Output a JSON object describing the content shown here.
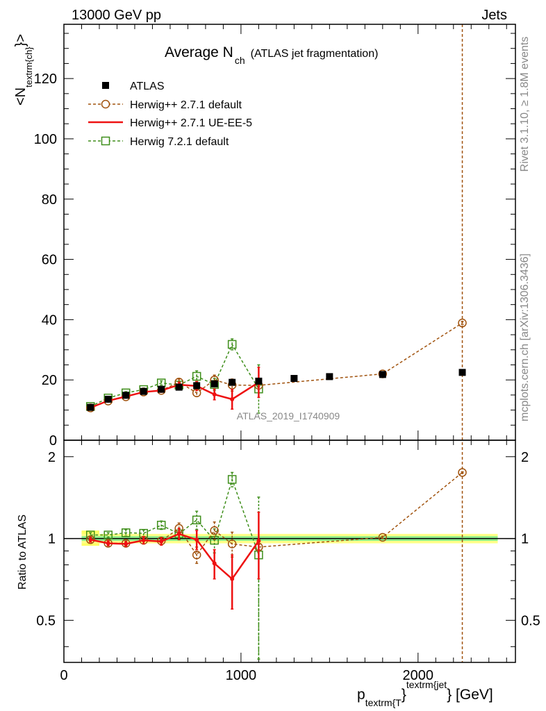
{
  "header": {
    "left": "13000 GeV pp",
    "right": "Jets"
  },
  "side_labels": {
    "rivet": "Rivet 3.1.10, ≥ 1.8M events",
    "mcplots": "mcplots.cern.ch [arXiv:1306.3436]"
  },
  "chart_data": {
    "type": "scatter",
    "title": {
      "main": "Average N",
      "sub": "ch",
      "extra": "(ATLAS jet fragmentation)"
    },
    "ylabel": {
      "main": "<N",
      "sub": "textrm{ch}",
      "close": "}>"
    },
    "xlabel": {
      "p": "p",
      "sub": "textrm{T",
      "brace": "}",
      "sup": "textrm{jet",
      "unit": "} [GeV]"
    },
    "analysis_label": "ATLAS_2019_I1740909",
    "ratio_ylabel": "Ratio to ATLAS",
    "xlim": [
      0,
      2550
    ],
    "ylim": [
      0,
      138
    ],
    "ratio_ylim": [
      0.35,
      2.3
    ],
    "ratio_scale": "log",
    "x_ticks": [
      {
        "value": 0,
        "label": "0"
      },
      {
        "value": 1000,
        "label": "1000"
      },
      {
        "value": 2000,
        "label": "2000"
      }
    ],
    "y_ticks": [
      {
        "value": 0,
        "label": "0"
      },
      {
        "value": 20,
        "label": "20"
      },
      {
        "value": 40,
        "label": "40"
      },
      {
        "value": 60,
        "label": "60"
      },
      {
        "value": 80,
        "label": "80"
      },
      {
        "value": 100,
        "label": "100"
      },
      {
        "value": 120,
        "label": "120"
      }
    ],
    "ratio_ticks": [
      {
        "value": 0.5,
        "label": "0.5"
      },
      {
        "value": 1,
        "label": "1"
      },
      {
        "value": 2,
        "label": "2"
      }
    ],
    "legend_position": "top-left",
    "series": [
      {
        "name": "ATLAS",
        "color": "#000000",
        "marker": "filled-square",
        "x": [
          150,
          250,
          350,
          450,
          550,
          650,
          750,
          850,
          950,
          1100,
          1300,
          1500,
          1800,
          2250
        ],
        "y": [
          10.9,
          13.6,
          14.9,
          16.2,
          16.9,
          17.6,
          18.1,
          18.7,
          19.2,
          19.6,
          20.5,
          21.1,
          21.8,
          22.5
        ],
        "ratio": [
          1,
          1,
          1,
          1,
          1,
          1,
          1,
          1,
          1,
          1,
          1,
          1,
          1,
          1
        ]
      },
      {
        "name": "Herwig++ 2.7.1 default",
        "color": "#a0520d",
        "marker": "open-circle",
        "dashed": true,
        "x": [
          150,
          250,
          350,
          450,
          550,
          650,
          750,
          850,
          950,
          1100,
          1800,
          2250
        ],
        "y": [
          10.7,
          13.0,
          14.4,
          16.0,
          16.5,
          19.3,
          15.7,
          20.0,
          18.3,
          18.2,
          22.0,
          38.9
        ],
        "yerr": [
          0.2,
          0.3,
          0.4,
          0.4,
          0.6,
          1.0,
          1.2,
          1.6,
          2.0,
          0.5,
          0.5,
          0.5
        ],
        "ratio": [
          0.99,
          0.96,
          0.96,
          0.985,
          0.98,
          1.09,
          0.87,
          1.07,
          0.955,
          0.93,
          1.01,
          1.75
        ],
        "ratio_err": [
          0.02,
          0.02,
          0.02,
          0.03,
          0.03,
          0.05,
          0.06,
          0.08,
          0.1,
          0.02,
          0.01,
          0.01
        ],
        "vertical_line_x": 2250
      },
      {
        "name": "Herwig++ 2.7.1 UE-EE-5",
        "color": "#ee1111",
        "marker": "dot",
        "dashed": false,
        "x": [
          150,
          250,
          350,
          450,
          550,
          650,
          750,
          850,
          950,
          1100
        ],
        "y": [
          10.8,
          13.1,
          14.5,
          16.0,
          16.5,
          18.4,
          18.0,
          15.2,
          13.6,
          19.2
        ],
        "yerr": [
          0.3,
          0.3,
          0.4,
          0.4,
          0.6,
          0.9,
          1.5,
          1.8,
          3.3,
          5.0
        ],
        "ratio": [
          0.99,
          0.96,
          0.955,
          0.985,
          0.975,
          1.04,
          0.99,
          0.81,
          0.71,
          0.98
        ],
        "ratio_err": [
          0.02,
          0.02,
          0.02,
          0.03,
          0.03,
          0.05,
          0.08,
          0.1,
          0.16,
          0.27
        ]
      },
      {
        "name": "Herwig 7.2.1 default",
        "color": "#3e8e1a",
        "marker": "open-square",
        "dashed": true,
        "x": [
          150,
          250,
          350,
          450,
          550,
          650,
          750,
          850,
          950,
          1100
        ],
        "y": [
          11.2,
          14.0,
          15.7,
          16.8,
          19.0,
          18.3,
          21.2,
          18.5,
          31.8,
          17.0
        ],
        "yerr": [
          0.3,
          0.3,
          0.4,
          0.5,
          0.7,
          1.0,
          1.8,
          2.0,
          1.8,
          8.0
        ],
        "ratio": [
          1.03,
          1.03,
          1.05,
          1.045,
          1.12,
          1.04,
          1.17,
          0.985,
          1.65,
          0.87
        ],
        "ratio_err": [
          0.02,
          0.02,
          0.03,
          0.03,
          0.04,
          0.05,
          0.09,
          0.1,
          0.1,
          0.55
        ]
      }
    ]
  }
}
